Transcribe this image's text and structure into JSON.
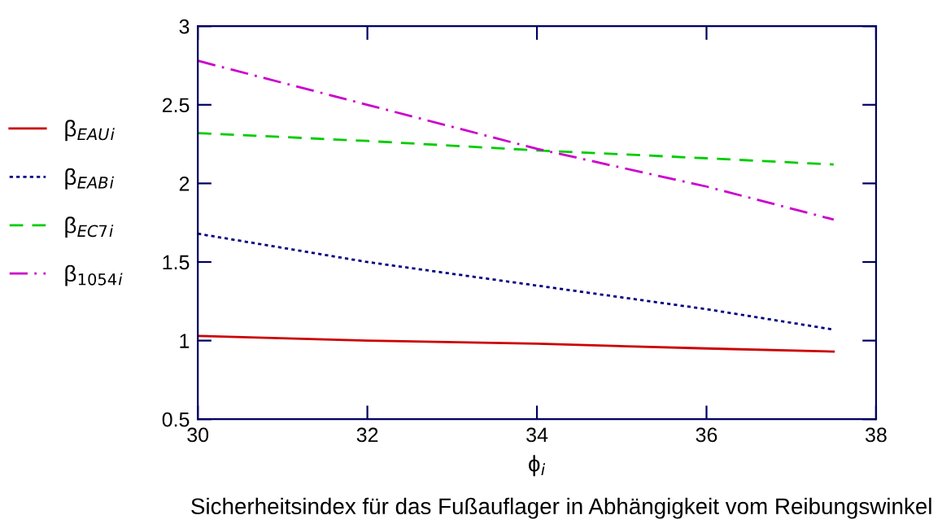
{
  "chart_data": {
    "type": "line",
    "xlabel": "ϕ$_{i}$",
    "annotations": [
      "Sicherheitsindex für das Fußauflager in Abhängigkeit vom Reibungswinkel"
    ],
    "x": [
      30,
      32,
      34,
      36,
      37.5
    ],
    "series": [
      {
        "name": "β$_{EAU}$$_{i}$",
        "color": "#cc0000",
        "line_style": "solid",
        "values": [
          1.03,
          1.0,
          0.98,
          0.95,
          0.93
        ]
      },
      {
        "name": "β$_{EAB}$$_{i}$",
        "color": "#000080",
        "line_style": "dotted",
        "values": [
          1.68,
          1.5,
          1.35,
          1.2,
          1.07
        ]
      },
      {
        "name": "β$_{EC7}$$_{i}$",
        "color": "#00cc00",
        "line_style": "dashed",
        "values": [
          2.32,
          2.27,
          2.21,
          2.16,
          2.12
        ]
      },
      {
        "name": "β$_{1054}$$_{i}$",
        "color": "#cc00cc",
        "line_style": "dashdot",
        "values": [
          2.78,
          2.5,
          2.22,
          1.98,
          1.77
        ]
      }
    ],
    "xlim": [
      30,
      38
    ],
    "xticks": [
      30,
      32,
      34,
      36,
      38
    ],
    "ylim": [
      0.5,
      3
    ],
    "yticks": [
      0.5,
      1,
      1.5,
      2,
      2.5,
      3
    ],
    "grid": false,
    "legend": "left"
  }
}
